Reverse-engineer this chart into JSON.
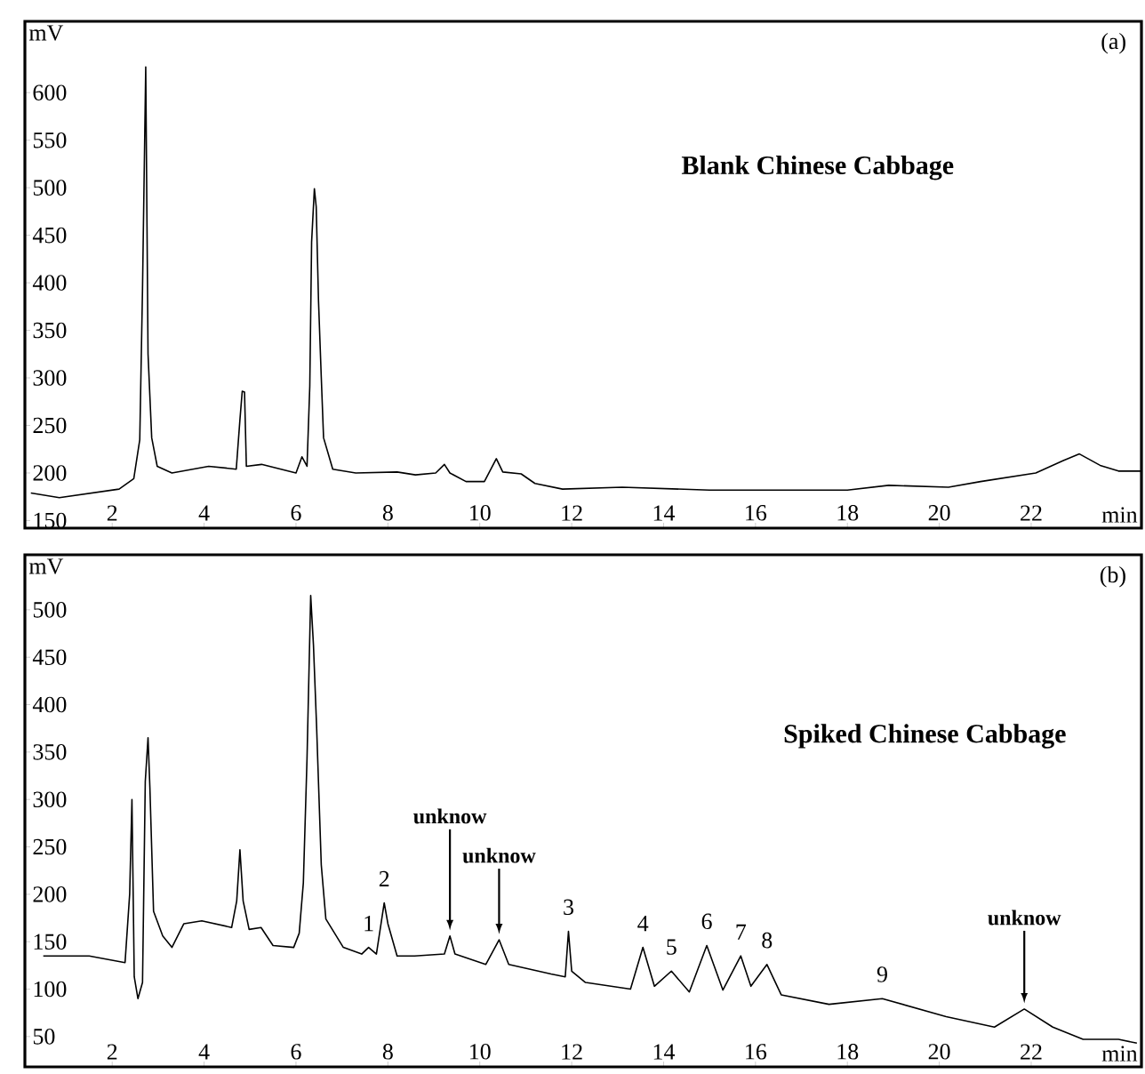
{
  "chart_data": [
    {
      "type": "line",
      "title": "Blank Chinese Cabbage",
      "xlabel": "min",
      "ylabel": "mV",
      "annotations": [
        "(a)"
      ],
      "xlim": [
        0.1,
        24.4
      ],
      "ylim": [
        142,
        675
      ],
      "xticks": [
        2,
        4,
        6,
        8,
        10,
        12,
        14,
        16,
        18,
        20,
        22
      ],
      "yticks": [
        150,
        200,
        250,
        300,
        350,
        400,
        450,
        500,
        550,
        600
      ],
      "series": [
        {
          "color": "#000000",
          "x": [
            0.23,
            0.85,
            2.15,
            2.47,
            2.6,
            2.66,
            2.73,
            2.78,
            2.86,
            2.98,
            3.3,
            4.1,
            4.7,
            4.78,
            4.83,
            4.88,
            4.92,
            5.25,
            6.0,
            6.13,
            6.24,
            6.3,
            6.34,
            6.4,
            6.44,
            6.49,
            6.55,
            6.6,
            6.8,
            7.3,
            8.2,
            8.6,
            9.04,
            9.23,
            9.35,
            9.7,
            10.1,
            10.36,
            10.5,
            10.9,
            11.2,
            11.8,
            13.1,
            15.0,
            16.9,
            18.0,
            18.9,
            20.2,
            20.9,
            22.1,
            22.7,
            23.05,
            23.5,
            23.9,
            24.4
          ],
          "values": [
            179,
            174,
            183,
            194,
            235,
            394,
            627,
            325,
            237,
            207,
            200,
            207,
            204,
            256,
            286,
            285,
            207,
            209,
            200,
            217,
            207,
            291,
            443,
            499,
            480,
            381,
            301,
            237,
            204,
            200,
            201,
            198,
            200,
            209,
            200,
            191,
            191,
            215,
            201,
            199,
            189,
            183,
            185,
            182,
            182,
            182,
            187,
            185,
            191,
            200,
            213,
            220,
            208,
            202,
            202
          ]
        }
      ]
    },
    {
      "type": "line",
      "title": "Spiked Chinese Cabbage",
      "xlabel": "min",
      "ylabel": "mV",
      "annotations": [
        "(b)",
        {
          "text": "1",
          "x": 7.58,
          "y": 144
        },
        {
          "text": "2",
          "x": 7.92,
          "y": 191
        },
        {
          "text": "unknow",
          "x": 9.35,
          "y": 156
        },
        {
          "text": "unknow",
          "x": 10.42,
          "y": 152
        },
        {
          "text": "3",
          "x": 11.93,
          "y": 161
        },
        {
          "text": "4",
          "x": 13.55,
          "y": 144
        },
        {
          "text": "5",
          "x": 14.17,
          "y": 119
        },
        {
          "text": "6",
          "x": 14.94,
          "y": 146
        },
        {
          "text": "7",
          "x": 15.68,
          "y": 135
        },
        {
          "text": "8",
          "x": 16.25,
          "y": 126
        },
        {
          "text": "9",
          "x": 18.76,
          "y": 90
        },
        {
          "text": "unknow",
          "x": 21.85,
          "y": 79
        }
      ],
      "xlim": [
        0.1,
        24.4
      ],
      "ylim": [
        18,
        558
      ],
      "xticks": [
        2,
        4,
        6,
        8,
        10,
        12,
        14,
        16,
        18,
        20,
        22
      ],
      "yticks": [
        50,
        100,
        150,
        200,
        250,
        300,
        350,
        400,
        450,
        500
      ],
      "series": [
        {
          "color": "#000000",
          "x": [
            0.5,
            1.5,
            2.28,
            2.38,
            2.43,
            2.48,
            2.56,
            2.66,
            2.72,
            2.78,
            2.82,
            2.9,
            3.1,
            3.3,
            3.56,
            3.95,
            4.6,
            4.71,
            4.78,
            4.85,
            4.98,
            5.24,
            5.5,
            5.95,
            6.07,
            6.16,
            6.24,
            6.32,
            6.38,
            6.45,
            6.55,
            6.65,
            7.03,
            7.43,
            7.58,
            7.75,
            7.92,
            8.0,
            8.2,
            8.58,
            9.23,
            9.35,
            9.46,
            10.13,
            10.42,
            10.63,
            11.55,
            11.86,
            11.93,
            12.0,
            12.3,
            13.28,
            13.55,
            13.8,
            14.17,
            14.56,
            14.94,
            15.29,
            15.68,
            15.9,
            16.25,
            16.56,
            17.6,
            18.76,
            20.15,
            21.2,
            21.85,
            22.47,
            23.13,
            23.9,
            24.3
          ],
          "values": [
            135,
            135,
            128,
            200,
            300,
            113,
            90,
            107,
            319,
            365,
            313,
            182,
            156,
            144,
            169,
            172,
            165,
            193,
            247,
            193,
            163,
            165,
            146,
            144,
            159,
            212,
            343,
            515,
            463,
            375,
            231,
            174,
            144,
            137,
            144,
            137,
            191,
            169,
            135,
            135,
            137,
            156,
            137,
            126,
            152,
            126,
            116,
            113,
            161,
            119,
            107,
            100,
            144,
            103,
            119,
            97,
            146,
            99,
            135,
            103,
            126,
            94,
            84,
            90,
            71,
            60,
            79,
            60,
            47,
            47,
            43
          ]
        }
      ]
    }
  ]
}
